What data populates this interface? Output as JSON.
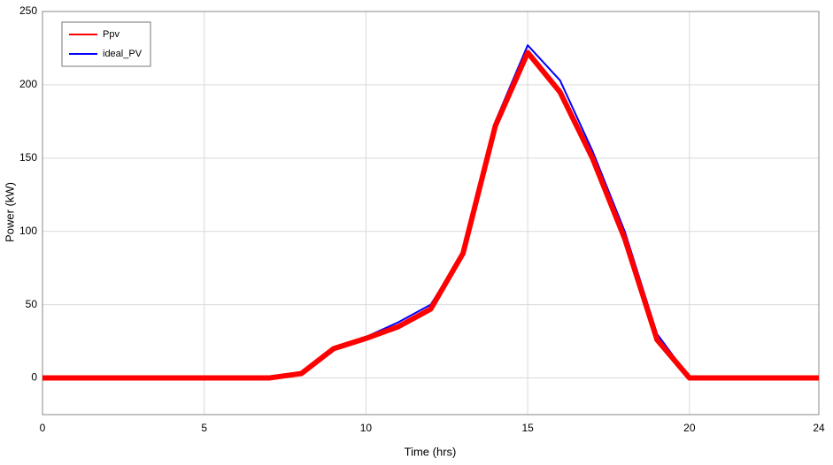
{
  "chart_data": {
    "type": "line",
    "x_label": "Time (hrs)",
    "y_label": "Power (kW)",
    "x": [
      0,
      7,
      8,
      9,
      10,
      11,
      12,
      13,
      14,
      15,
      16,
      17,
      18,
      19,
      20,
      24
    ],
    "series": [
      {
        "name": "Ppv",
        "color": "#ff0000",
        "values": [
          0,
          0,
          3,
          20,
          27,
          35,
          47,
          85,
          172,
          222,
          195,
          150,
          95,
          26,
          0,
          0
        ]
      },
      {
        "name": "ideal_PV",
        "color": "#0000ff",
        "values": [
          0,
          0,
          3,
          21,
          28,
          38,
          50,
          85,
          175,
          227,
          203,
          155,
          100,
          30,
          0,
          0
        ]
      }
    ],
    "xlim": [
      0,
      24
    ],
    "xticks": [
      0,
      5,
      10,
      15,
      20,
      24
    ],
    "ylim": [
      -25,
      250
    ],
    "yticks": [
      0,
      50,
      100,
      150,
      200,
      250
    ],
    "grid": true,
    "legend": "upper left"
  }
}
